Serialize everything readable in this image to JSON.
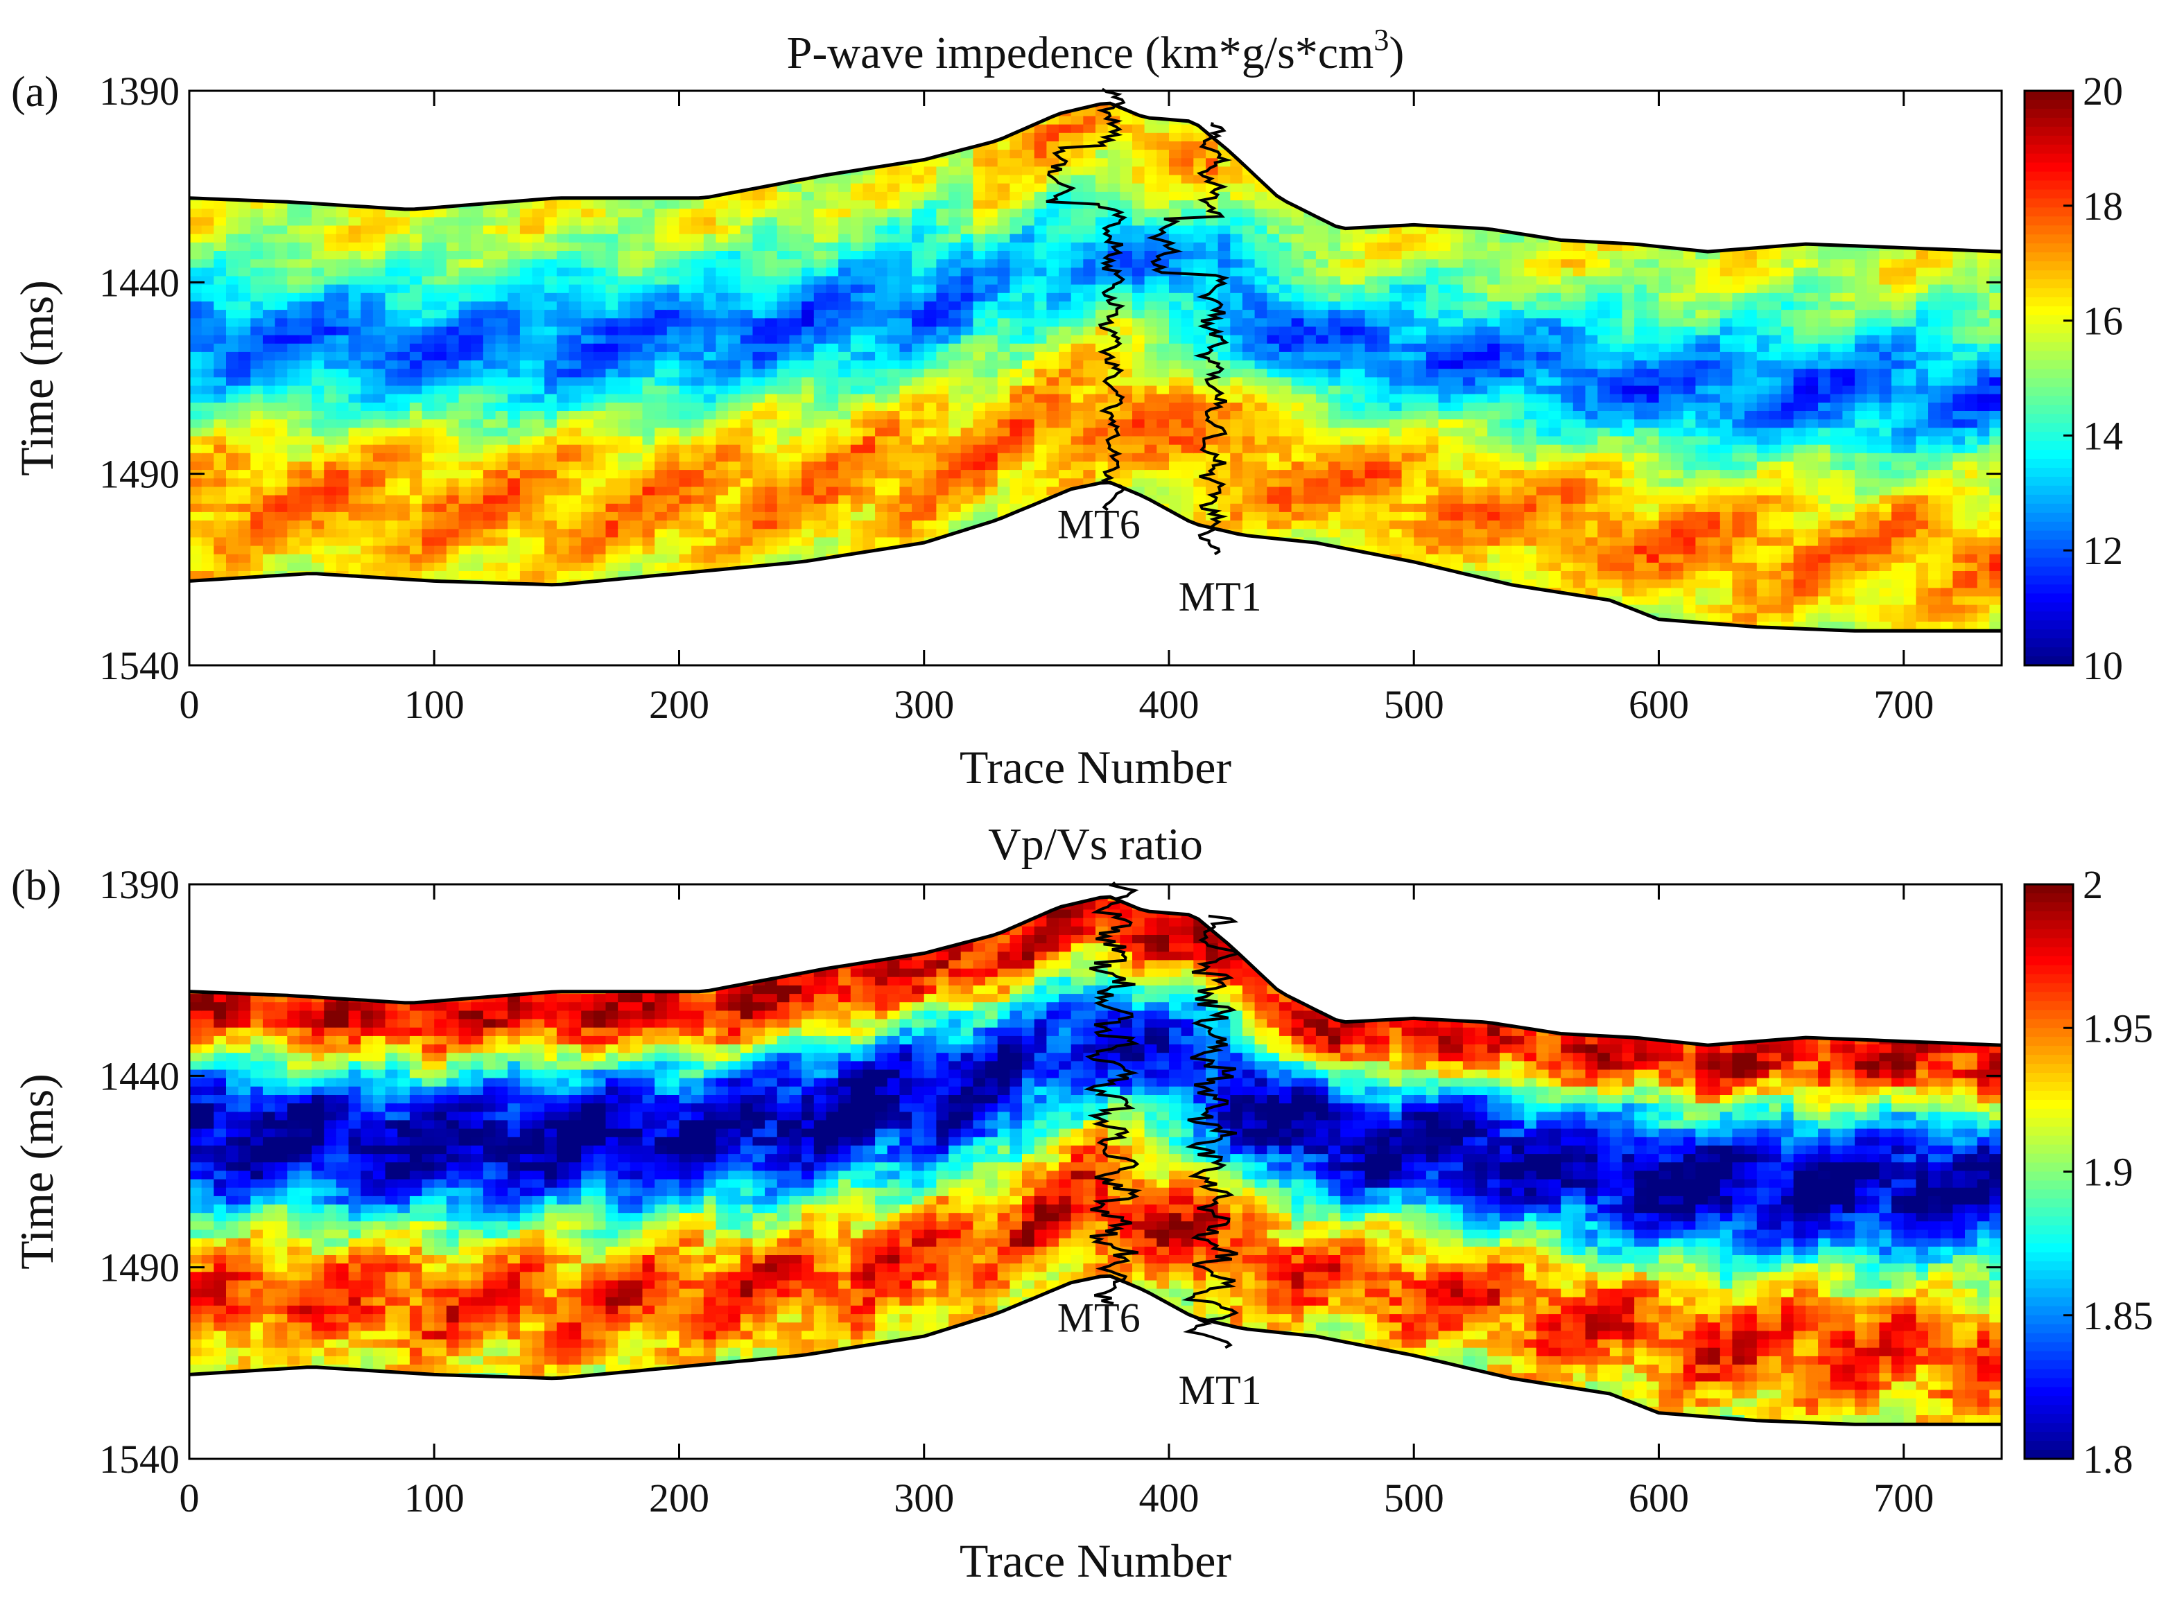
{
  "chart_data": [
    {
      "type": "heatmap",
      "panel_label": "(a)",
      "title_main": "P-wave impedence (km*g/s*cm",
      "title_sup": "3",
      "title_end": ")",
      "xlabel": "Trace Number",
      "ylabel": "Time (ms)",
      "xlim": [
        0,
        740
      ],
      "ylim": [
        1390,
        1540
      ],
      "y_reversed": true,
      "xticks": [
        0,
        100,
        200,
        300,
        400,
        500,
        600,
        700
      ],
      "yticks": [
        1390,
        1440,
        1490,
        1540
      ],
      "colormap": "jet",
      "colorbar": {
        "min": 10,
        "max": 20,
        "ticks": [
          20,
          18,
          16,
          14,
          12,
          10
        ]
      },
      "wells": [
        {
          "name": "MT6",
          "trace": 377
        },
        {
          "name": "MT1",
          "trace": 418
        }
      ],
      "top_horizon": {
        "trace": [
          0,
          40,
          90,
          150,
          210,
          260,
          300,
          330,
          355,
          375,
          390,
          410,
          425,
          445,
          470,
          500,
          530,
          560,
          590,
          620,
          660,
          700,
          740
        ],
        "time": [
          1418,
          1419,
          1421,
          1418,
          1418,
          1412,
          1408,
          1403,
          1396,
          1393,
          1397,
          1398,
          1406,
          1418,
          1426,
          1425,
          1426,
          1429,
          1430,
          1432,
          1430,
          1431,
          1432
        ]
      },
      "bottom_horizon": {
        "trace": [
          0,
          50,
          100,
          150,
          200,
          250,
          300,
          330,
          360,
          375,
          390,
          410,
          430,
          460,
          500,
          540,
          580,
          600,
          640,
          680,
          720,
          740
        ],
        "time": [
          1518,
          1516,
          1518,
          1519,
          1516,
          1513,
          1508,
          1502,
          1494,
          1492,
          1496,
          1503,
          1506,
          1508,
          1513,
          1519,
          1523,
          1528,
          1530,
          1531,
          1531,
          1531
        ]
      }
    },
    {
      "type": "heatmap",
      "panel_label": "(b)",
      "title": "Vp/Vs ratio",
      "xlabel": "Trace Number",
      "ylabel": "Time (ms)",
      "xlim": [
        0,
        740
      ],
      "ylim": [
        1390,
        1540
      ],
      "y_reversed": true,
      "xticks": [
        0,
        100,
        200,
        300,
        400,
        500,
        600,
        700
      ],
      "yticks": [
        1390,
        1440,
        1490,
        1540
      ],
      "colormap": "jet",
      "colorbar": {
        "min": 1.8,
        "max": 2.0,
        "ticks": [
          "2",
          "1.95",
          "1.9",
          "1.85",
          "1.8"
        ]
      },
      "wells": [
        {
          "name": "MT6",
          "trace": 377
        },
        {
          "name": "MT1",
          "trace": 418
        }
      ],
      "top_horizon": {
        "trace": [
          0,
          40,
          90,
          150,
          210,
          260,
          300,
          330,
          355,
          375,
          390,
          410,
          425,
          445,
          470,
          500,
          530,
          560,
          590,
          620,
          660,
          700,
          740
        ],
        "time": [
          1418,
          1419,
          1421,
          1418,
          1418,
          1412,
          1408,
          1403,
          1396,
          1393,
          1397,
          1398,
          1406,
          1418,
          1426,
          1425,
          1426,
          1429,
          1430,
          1432,
          1430,
          1431,
          1432
        ]
      },
      "bottom_horizon": {
        "trace": [
          0,
          50,
          100,
          150,
          200,
          250,
          300,
          330,
          360,
          375,
          390,
          410,
          430,
          460,
          500,
          540,
          580,
          600,
          640,
          680,
          720,
          740
        ],
        "time": [
          1518,
          1516,
          1518,
          1519,
          1516,
          1513,
          1508,
          1502,
          1494,
          1492,
          1496,
          1503,
          1506,
          1508,
          1513,
          1519,
          1523,
          1528,
          1530,
          1531,
          1531,
          1531
        ]
      }
    }
  ]
}
